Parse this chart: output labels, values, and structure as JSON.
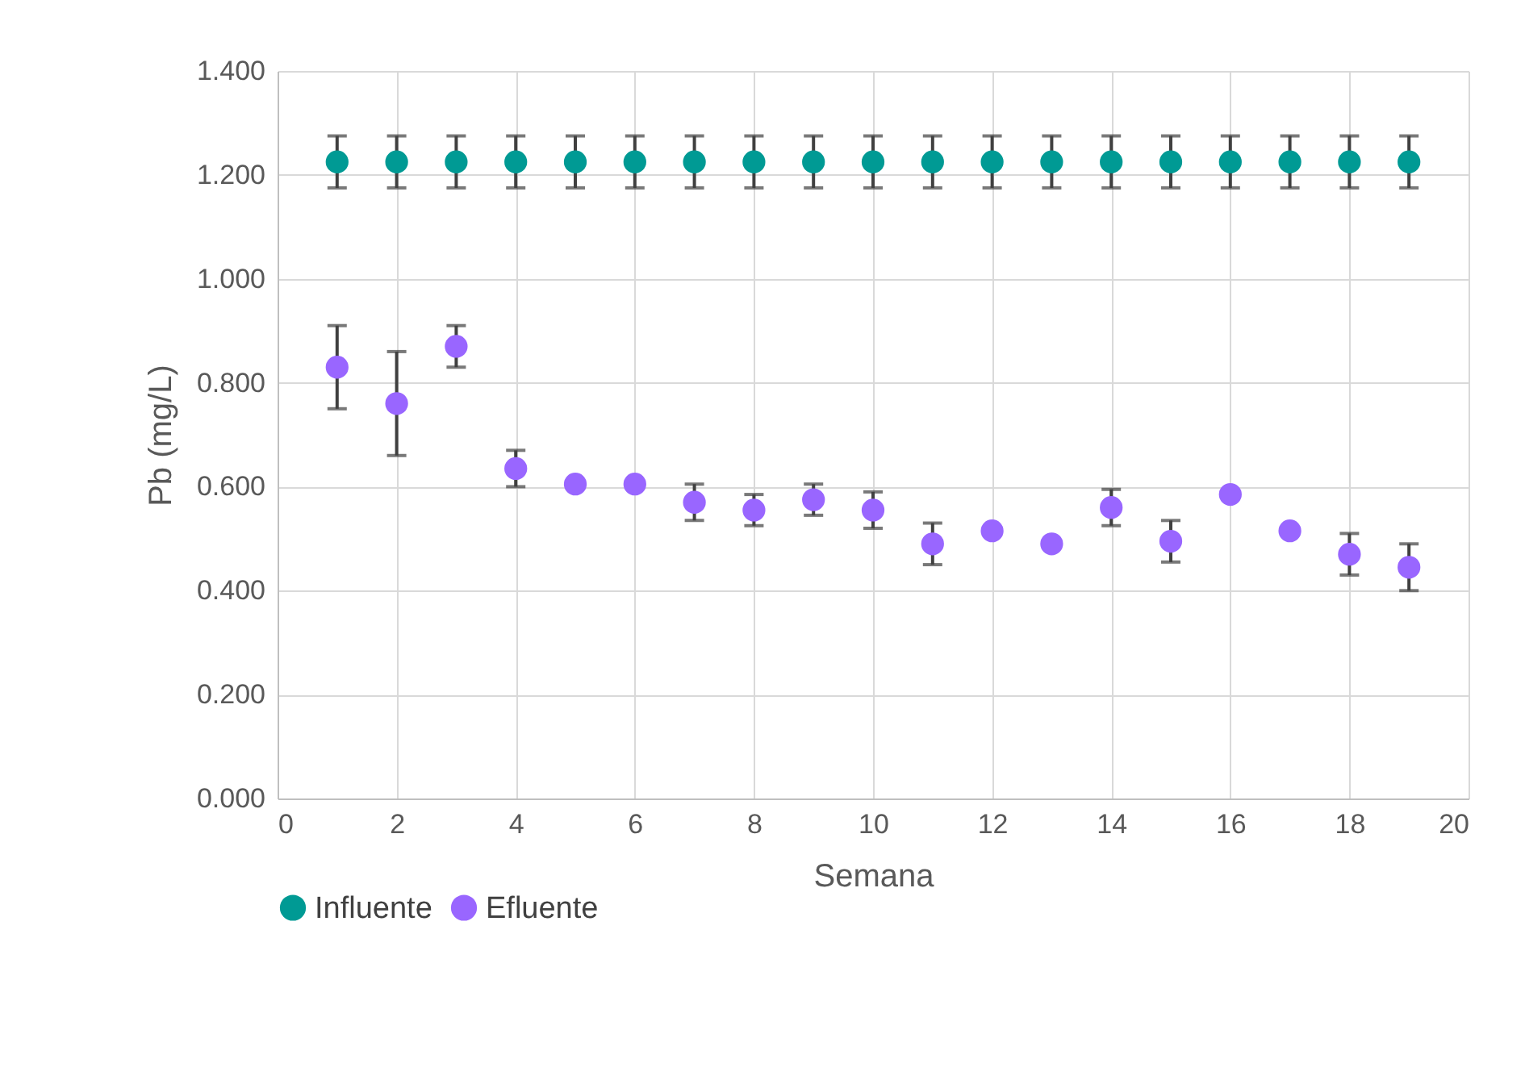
{
  "chart_data": {
    "type": "scatter",
    "xlabel": "Semana",
    "ylabel": "Pb (mg/L)",
    "x": [
      1,
      2,
      3,
      4,
      5,
      6,
      7,
      8,
      9,
      10,
      11,
      12,
      13,
      14,
      15,
      16,
      17,
      18,
      19
    ],
    "series": [
      {
        "name": "Influente",
        "color": "#009a94",
        "values": [
          1.225,
          1.225,
          1.225,
          1.225,
          1.225,
          1.225,
          1.225,
          1.225,
          1.225,
          1.225,
          1.225,
          1.225,
          1.225,
          1.225,
          1.225,
          1.225,
          1.225,
          1.225,
          1.225
        ],
        "errors": [
          0.05,
          0.05,
          0.05,
          0.05,
          0.05,
          0.05,
          0.05,
          0.05,
          0.05,
          0.05,
          0.05,
          0.05,
          0.05,
          0.05,
          0.05,
          0.05,
          0.05,
          0.05,
          0.05
        ]
      },
      {
        "name": "Efluente",
        "color": "#9966ff",
        "values": [
          0.83,
          0.76,
          0.87,
          0.635,
          0.605,
          0.605,
          0.57,
          0.555,
          0.575,
          0.555,
          0.49,
          0.515,
          0.49,
          0.56,
          0.495,
          0.585,
          0.515,
          0.47,
          0.445
        ],
        "errors": [
          0.08,
          0.1,
          0.04,
          0.035,
          null,
          null,
          0.035,
          0.03,
          0.03,
          0.035,
          0.04,
          null,
          null,
          0.035,
          0.04,
          null,
          null,
          0.04,
          0.045
        ]
      }
    ],
    "xlim": [
      0,
      20
    ],
    "xticks": [
      0,
      2,
      4,
      6,
      8,
      10,
      12,
      14,
      16,
      18,
      20
    ],
    "ylim": [
      0,
      1.4
    ],
    "yticks": [
      {
        "value": 0,
        "label": "0.000"
      },
      {
        "value": 0.2,
        "label": "0.200"
      },
      {
        "value": 0.4,
        "label": "0.400"
      },
      {
        "value": 0.6,
        "label": "0.600"
      },
      {
        "value": 0.8,
        "label": "0.800"
      },
      {
        "value": 1.0,
        "label": "1.000"
      },
      {
        "value": 1.2,
        "label": "1.200"
      },
      {
        "value": 1.4,
        "label": "1.400"
      }
    ],
    "grid": true,
    "legend": "bottom",
    "marker": "circle"
  }
}
